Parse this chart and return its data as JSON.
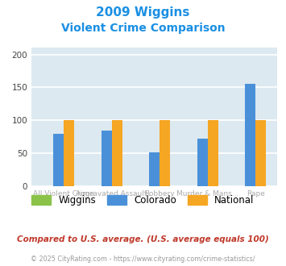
{
  "title_line1": "2009 Wiggins",
  "title_line2": "Violent Crime Comparison",
  "title_color": "#1a8fe3",
  "wiggins": [
    0,
    0,
    0,
    0,
    0
  ],
  "colorado": [
    80,
    85,
    52,
    72,
    155
  ],
  "national": [
    100,
    100,
    100,
    100,
    100
  ],
  "wiggins_color": "#8bc34a",
  "colorado_color": "#4a90d9",
  "national_color": "#f5a623",
  "bg_color": "#dce9f0",
  "ylim": [
    0,
    210
  ],
  "yticks": [
    0,
    50,
    100,
    150,
    200
  ],
  "group_labels_top": [
    "",
    "Aggravated Assault",
    "",
    "Murder & Mans...",
    ""
  ],
  "group_labels_bot": [
    "All Violent Crime",
    "",
    "Robbery",
    "",
    "Rape"
  ],
  "footnote1": "Compared to U.S. average. (U.S. average equals 100)",
  "footnote2": "© 2025 CityRating.com - https://www.cityrating.com/crime-statistics/",
  "footnote1_color": "#c0392b",
  "footnote2_color": "#999999",
  "footnote2_link_color": "#4a90d9",
  "legend_labels": [
    "Wiggins",
    "Colorado",
    "National"
  ]
}
